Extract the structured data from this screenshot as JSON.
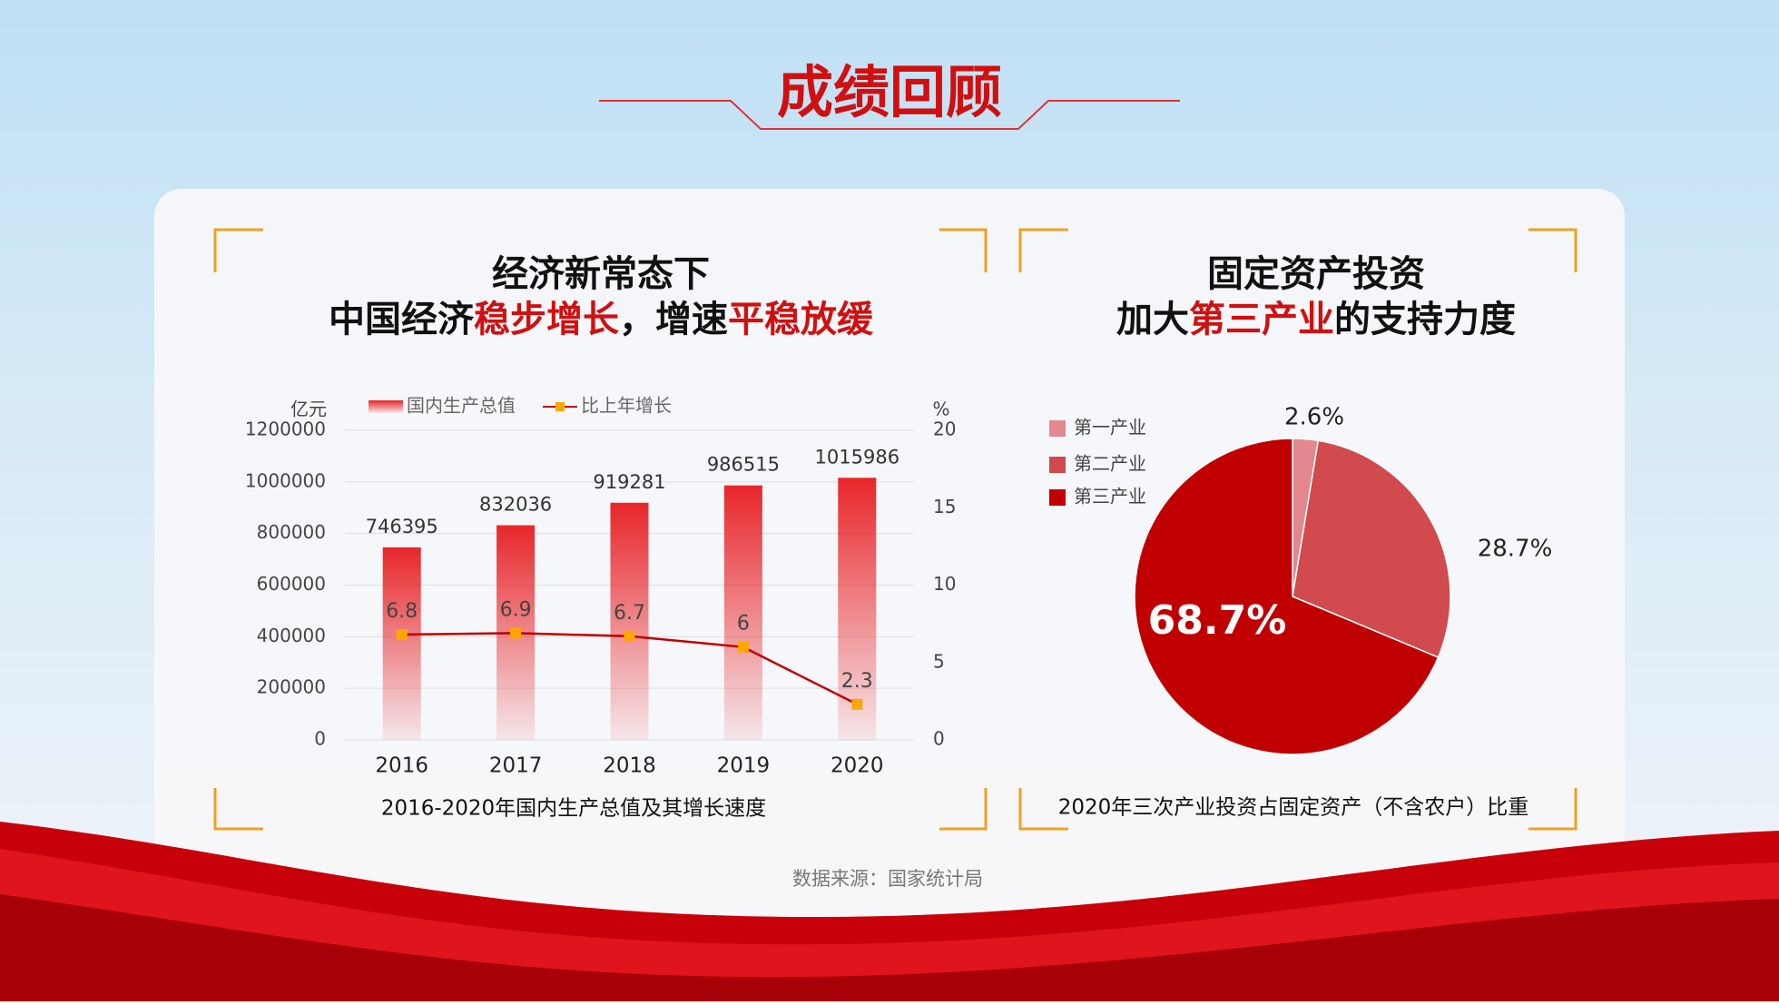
{
  "header": {
    "title": "成绩回顾"
  },
  "source": "数据来源：国家统计局",
  "chart_data": [
    {
      "type": "combo",
      "title_lines": [
        [
          "经济新常态下"
        ],
        [
          "中国经济",
          "稳步增长",
          "，增速",
          "平稳放缓"
        ]
      ],
      "caption": "2016-2020年国内生产总值及其增长速度",
      "y_label": "亿元",
      "y2_label": "%",
      "categories": [
        "2016",
        "2017",
        "2018",
        "2019",
        "2020"
      ],
      "series": [
        {
          "name": "国内生产总值",
          "kind": "bar",
          "color": "#e8262a",
          "values": [
            746395,
            832036,
            919281,
            986515,
            1015986
          ]
        },
        {
          "name": "比上年增长",
          "kind": "line",
          "axis": "y2",
          "color": "#c00000",
          "marker_color": "#ffa500",
          "values": [
            6.8,
            6.9,
            6.7,
            6,
            2.3
          ]
        }
      ],
      "ylim": [
        0,
        1200000
      ],
      "yticks": [
        0,
        200000,
        400000,
        600000,
        800000,
        1000000,
        1200000
      ],
      "y2lim": [
        0,
        20
      ],
      "y2ticks": [
        0,
        5,
        10,
        15,
        20
      ]
    },
    {
      "type": "pie",
      "title_lines": [
        [
          "固定资产投资"
        ],
        [
          "加大",
          "第三产业",
          "的支持力度"
        ]
      ],
      "caption": "2020年三次产业投资占固定资产（不含农户）比重",
      "categories": [
        "第一产业",
        "第二产业",
        "第三产业"
      ],
      "values": [
        2.6,
        28.7,
        68.7
      ],
      "value_labels": [
        "2.6%",
        "28.7%",
        "68.7%"
      ],
      "colors": [
        "#e2888e",
        "#d04a4e",
        "#c00000"
      ]
    }
  ]
}
